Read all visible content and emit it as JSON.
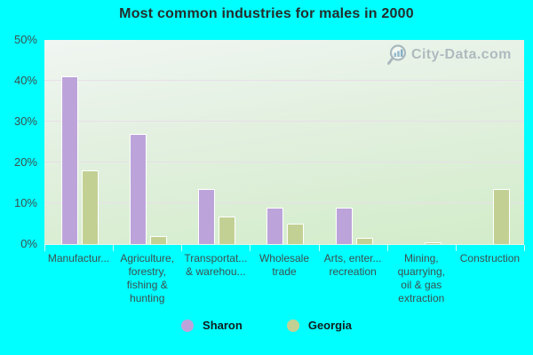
{
  "title": "Most common industries for males in 2000",
  "watermark": {
    "text": "City-Data.com"
  },
  "colors": {
    "background": "#00ffff",
    "plot_gradient_top": "#f0f6f2",
    "plot_gradient_bottom": "#d2ecc9",
    "gridline": "#e8dee9",
    "axis_text": "#3e4f4f",
    "title_text": "#252c2c",
    "watermark_text": "#a9b5bb",
    "sharon_bar": "#bca4da",
    "georgia_bar": "#c2d193"
  },
  "chart_data": {
    "type": "bar",
    "title": "Most common industries for males in 2000",
    "categories": [
      "Manufactur...",
      "Agriculture, forestry, fishing & hunting",
      "Transportat... & warehou...",
      "Wholesale trade",
      "Arts, enter... recreation",
      "Mining, quarrying, oil & gas extraction",
      "Construction"
    ],
    "category_label_lines": [
      [
        "Manufactur..."
      ],
      [
        "Agriculture,",
        "forestry,",
        "fishing &",
        "hunting"
      ],
      [
        "Transportat...",
        "& warehou..."
      ],
      [
        "Wholesale",
        "trade"
      ],
      [
        "Arts, enter...",
        "recreation"
      ],
      [
        "Mining,",
        "quarrying,",
        "oil & gas",
        "extraction"
      ],
      [
        "Construction"
      ]
    ],
    "series": [
      {
        "name": "Sharon",
        "color": "#bca4da",
        "values": [
          41,
          27,
          13.5,
          9,
          9,
          0,
          0
        ]
      },
      {
        "name": "Georgia",
        "color": "#c2d193",
        "values": [
          18,
          2,
          6.7,
          5,
          1.5,
          0.4,
          13.5
        ]
      }
    ],
    "xlabel": "",
    "ylabel": "",
    "ylim": [
      0,
      50
    ],
    "y_ticks": [
      {
        "value": 0,
        "label": "0%"
      },
      {
        "value": 10,
        "label": "10%"
      },
      {
        "value": 20,
        "label": "20%"
      },
      {
        "value": 30,
        "label": "30%"
      },
      {
        "value": 40,
        "label": "40%"
      },
      {
        "value": 50,
        "label": "50%"
      }
    ],
    "grid": true,
    "legend_position": "bottom"
  }
}
